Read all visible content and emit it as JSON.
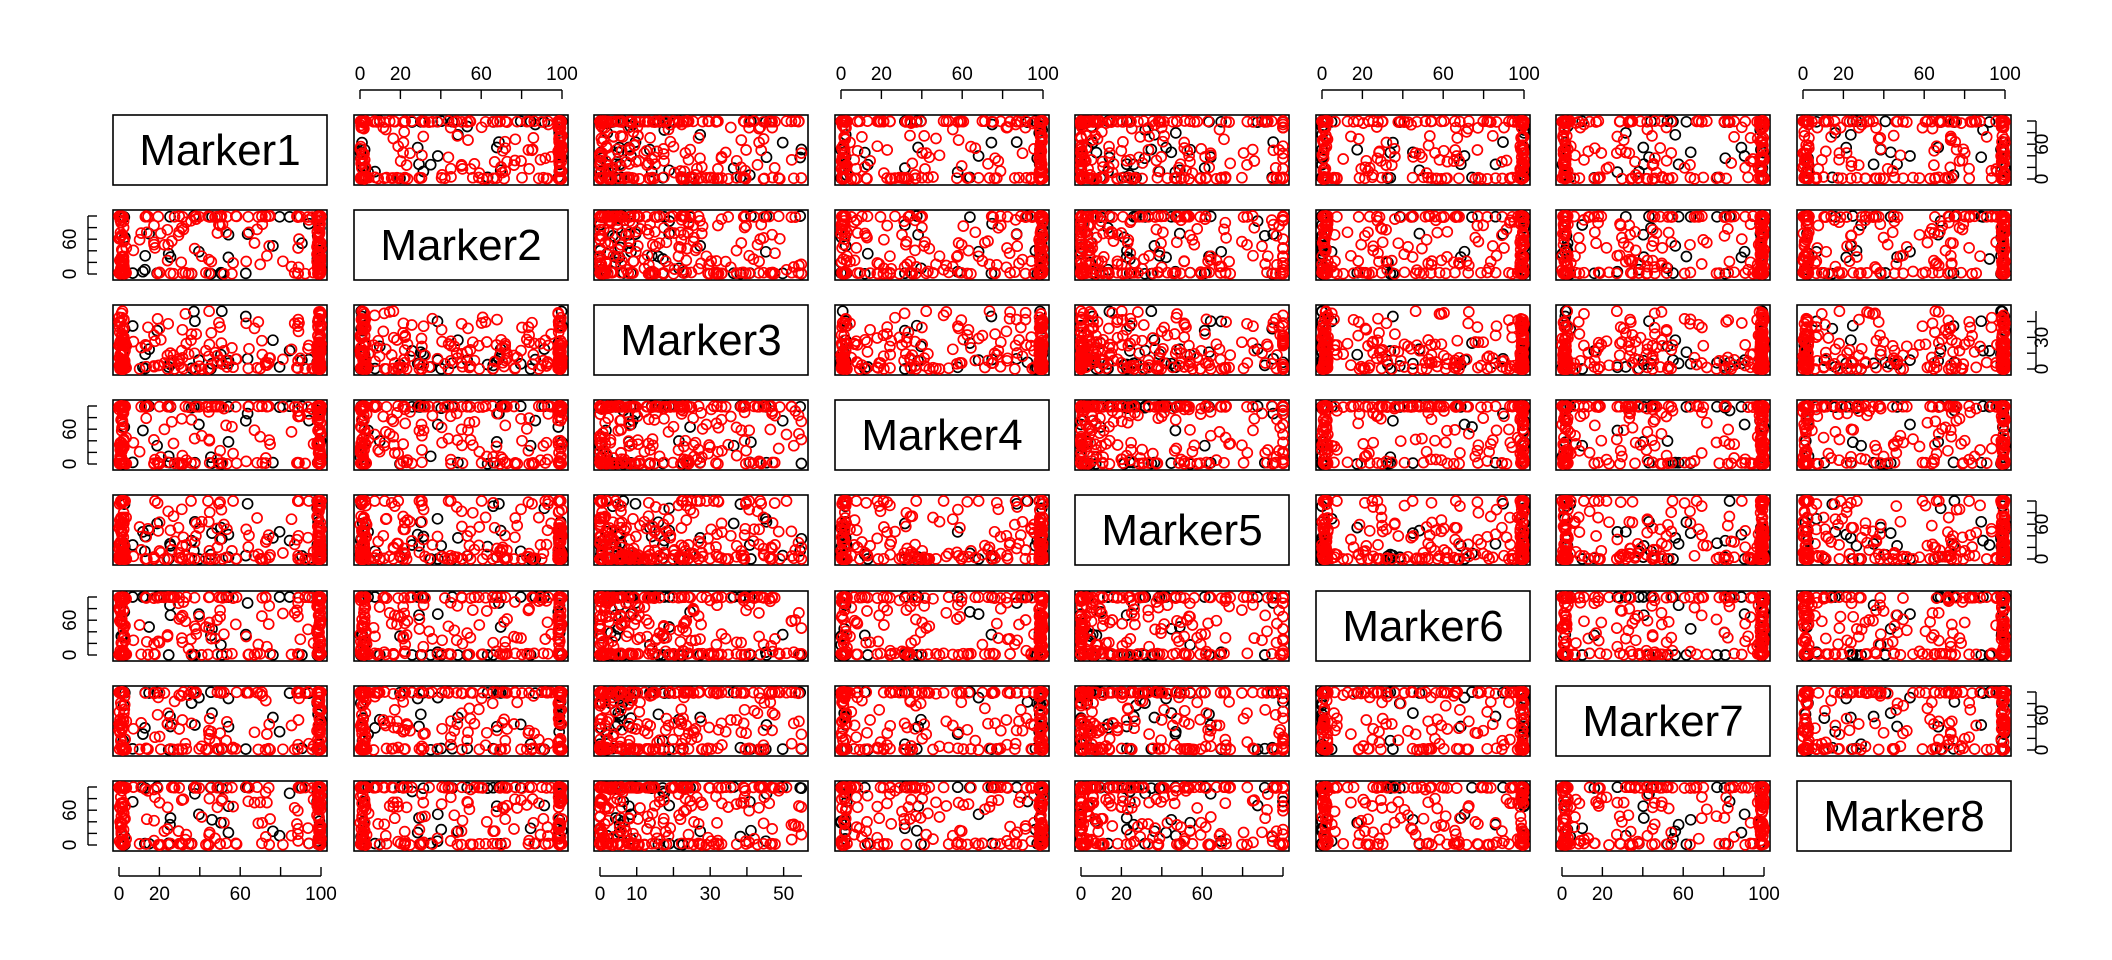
{
  "chart_data": {
    "type": "scatter-matrix",
    "variables": [
      "Marker1",
      "Marker2",
      "Marker3",
      "Marker4",
      "Marker5",
      "Marker6",
      "Marker7",
      "Marker8"
    ],
    "ranges": [
      [
        0,
        100
      ],
      [
        0,
        100
      ],
      [
        0,
        55
      ],
      [
        0,
        100
      ],
      [
        0,
        100
      ],
      [
        0,
        100
      ],
      [
        0,
        100
      ],
      [
        0,
        100
      ]
    ],
    "axis_ticks": {
      "top": {
        "Marker2": [
          "0",
          "20",
          "60",
          "100"
        ],
        "Marker4": [
          "0",
          "20",
          "60",
          "100"
        ],
        "Marker6": [
          "0",
          "20",
          "60",
          "100"
        ],
        "Marker8": [
          "0",
          "20",
          "60",
          "100"
        ]
      },
      "bottom": {
        "Marker1": [
          "0",
          "20",
          "60",
          "100"
        ],
        "Marker3": [
          "0",
          "10",
          "30",
          "50"
        ],
        "Marker5": [
          "0",
          "20",
          "60"
        ],
        "Marker7": [
          "0",
          "20",
          "60",
          "100"
        ]
      },
      "left": {
        "Marker2": [
          "0",
          "60"
        ],
        "Marker4": [
          "0",
          "60"
        ],
        "Marker6": [
          "0",
          "60"
        ],
        "Marker8": [
          "0",
          "60"
        ]
      },
      "right": {
        "Marker1": [
          "0",
          "60"
        ],
        "Marker3": [
          "0",
          "30"
        ],
        "Marker5": [
          "0",
          "60"
        ],
        "Marker7": [
          "0",
          "60"
        ]
      }
    },
    "groups": [
      {
        "color": "#000000",
        "count": 48
      },
      {
        "color": "#ff0000",
        "count": 230
      }
    ],
    "marker": "open-circle",
    "grid": false
  }
}
